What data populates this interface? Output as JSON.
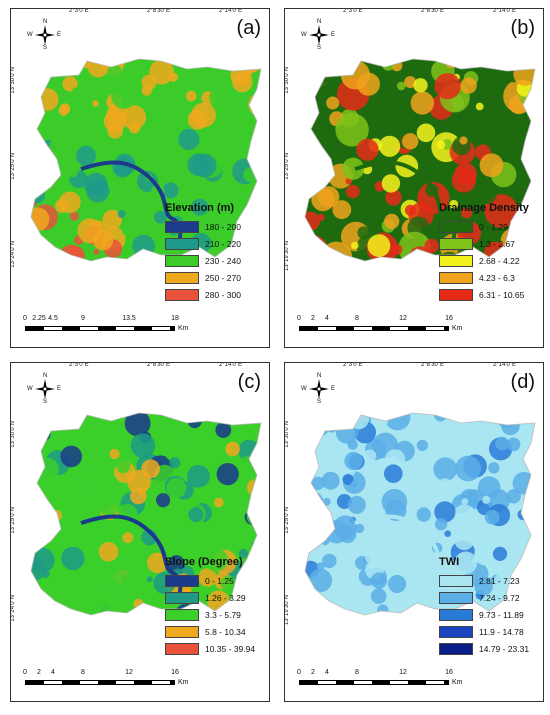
{
  "ticks_top": [
    "2°3'0\"E",
    "2°8'30\"E",
    "2°14'0\"E"
  ],
  "ticks_left": [
    "13°30'0\"N",
    "13°25'0\"N",
    "13°24'0\"N"
  ],
  "ticks_left_b": [
    "13°30'0\"N",
    "13°25'0\"N",
    "13°19'30\"N"
  ],
  "north_arrow": {
    "n": "N",
    "s": "S",
    "w": "W",
    "e": "E"
  },
  "panels": {
    "a": {
      "letter": "(a)",
      "legend_title": "Elevation (m)",
      "classes": [
        {
          "label": "180 - 200",
          "color": "#1c3b8c"
        },
        {
          "label": "210 - 220",
          "color": "#1f9a8a"
        },
        {
          "label": "230 - 240",
          "color": "#3ccc2a"
        },
        {
          "label": "250 - 270",
          "color": "#f0a81e"
        },
        {
          "label": "280 - 300",
          "color": "#e8523a"
        }
      ],
      "scale_labels": [
        "0",
        "2.25",
        "4.5",
        "9",
        "13.5",
        "18"
      ],
      "scale_unit": "Km"
    },
    "b": {
      "letter": "(b)",
      "legend_title": "Drainage Density",
      "classes": [
        {
          "label": "0 - 1.29",
          "color": "#1e6b0f"
        },
        {
          "label": "1.3 - 2.67",
          "color": "#7fc21a"
        },
        {
          "label": "2.68 - 4.22",
          "color": "#f4f21c"
        },
        {
          "label": "4.23 - 6.3",
          "color": "#f0a21c"
        },
        {
          "label": "6.31 - 10.65",
          "color": "#e62a18"
        }
      ],
      "scale_labels": [
        "0",
        "2",
        "4",
        "8",
        "12",
        "16"
      ],
      "scale_unit": "Km"
    },
    "c": {
      "letter": "(c)",
      "legend_title": "Slope (Degree)",
      "classes": [
        {
          "label": "0 - 1.25",
          "color": "#1b3a8c"
        },
        {
          "label": "1.26 - 3.29",
          "color": "#1e9a86"
        },
        {
          "label": "3.3 - 5.79",
          "color": "#3bcf2a"
        },
        {
          "label": "5.8 - 10.34",
          "color": "#f0a81e"
        },
        {
          "label": "10.35 - 39.94",
          "color": "#e8523a"
        }
      ],
      "scale_labels": [
        "0",
        "2",
        "4",
        "8",
        "12",
        "16"
      ],
      "scale_unit": "Km"
    },
    "d": {
      "letter": "(d)",
      "legend_title": "TWI",
      "classes": [
        {
          "label": "2.81 - 7.23",
          "color": "#a9e6f2"
        },
        {
          "label": "7.24 - 9.72",
          "color": "#5aaee6"
        },
        {
          "label": "9.73 - 11.89",
          "color": "#2a7ad8"
        },
        {
          "label": "11.9 - 14.78",
          "color": "#1a44c2"
        },
        {
          "label": "14.79 - 23.31",
          "color": "#0a1e8a"
        }
      ],
      "scale_labels": [
        "0",
        "2",
        "4",
        "8",
        "12",
        "16"
      ],
      "scale_unit": "Km"
    }
  }
}
